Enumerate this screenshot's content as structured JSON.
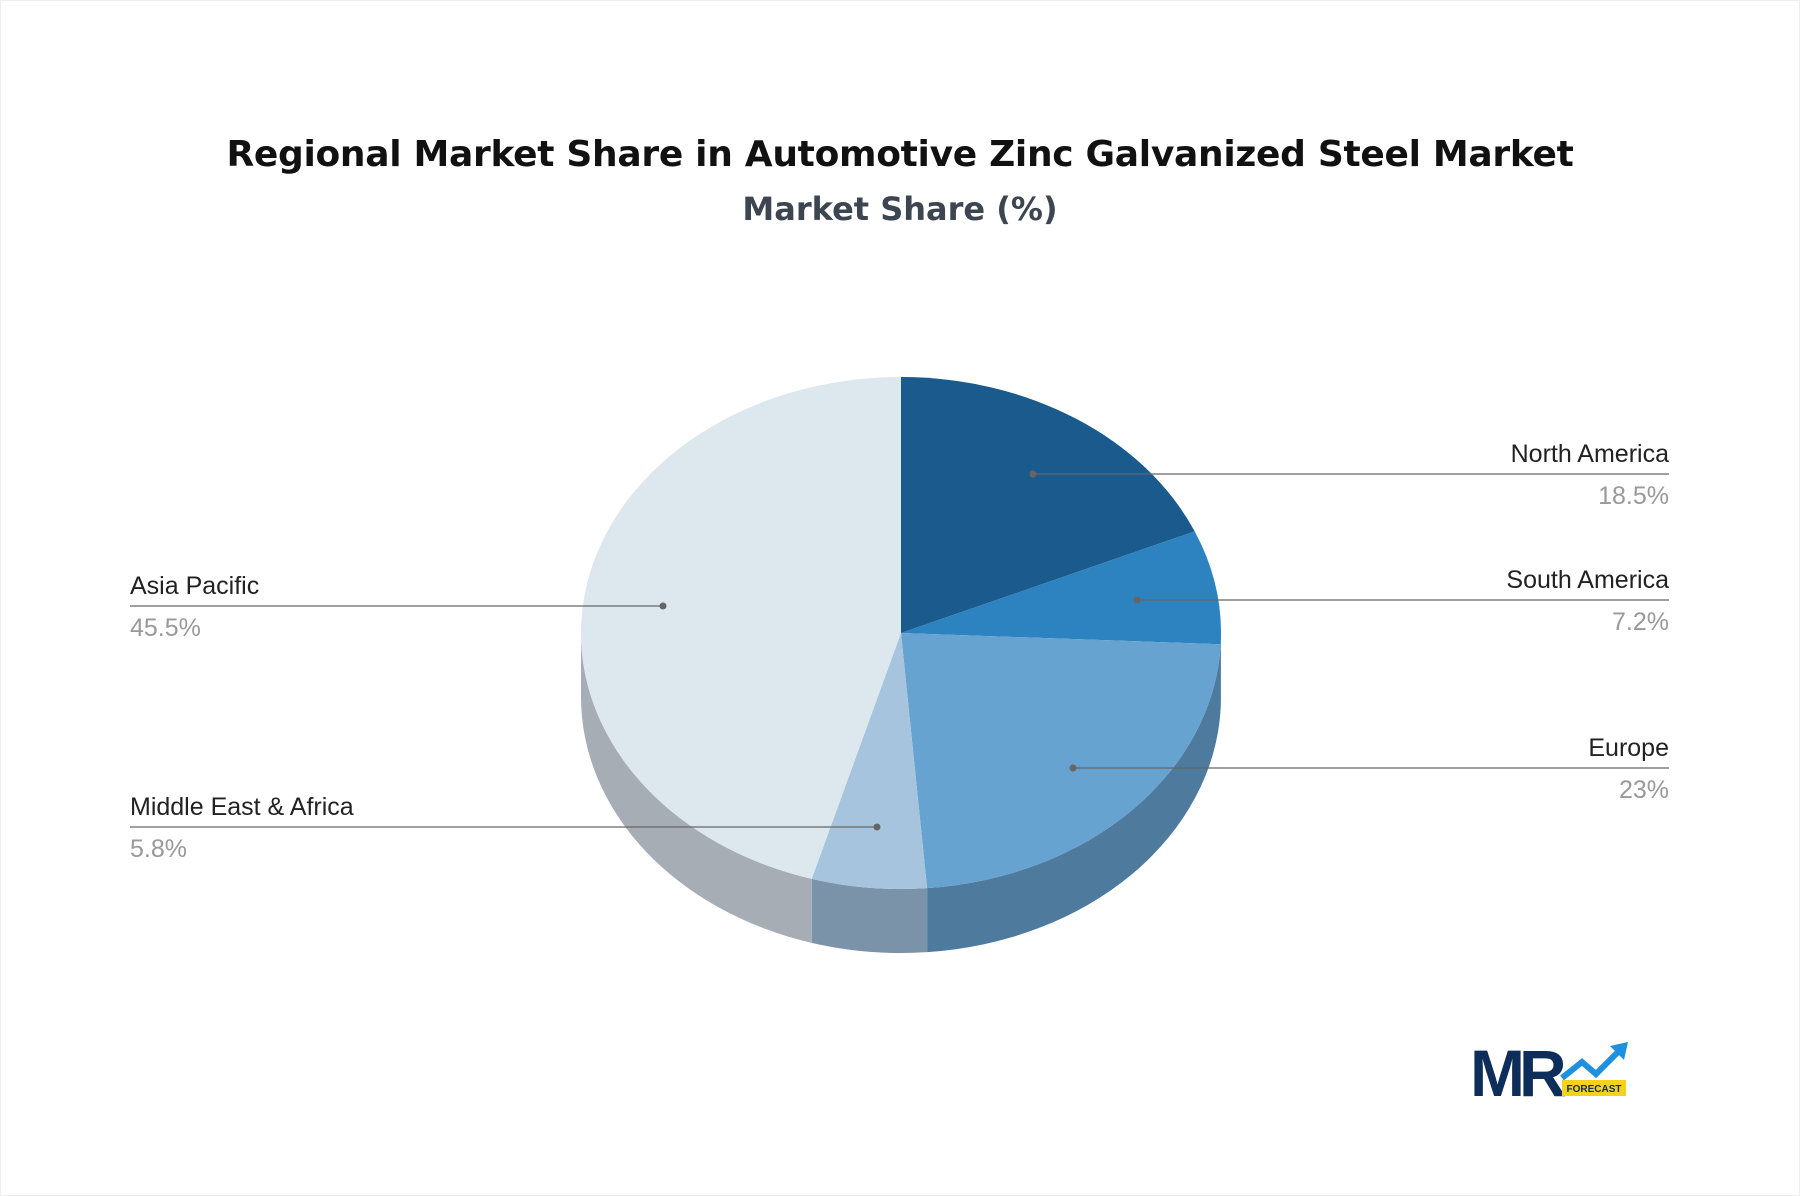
{
  "chart_data": {
    "type": "pie",
    "title": "Regional Market Share in Automotive Zinc Galvanized Steel Market",
    "subtitle": "Market Share (%)",
    "style": "3d",
    "slices": [
      {
        "label": "North America",
        "value": 18.5,
        "display": "18.5%",
        "color": "#1a5a8c",
        "side_color": "#164a73"
      },
      {
        "label": "South America",
        "value": 7.2,
        "display": "7.2%",
        "color": "#2d82c0",
        "side_color": "#25699c"
      },
      {
        "label": "Europe",
        "value": 23,
        "display": "23%",
        "color": "#66a3d1",
        "side_color": "#4e7a9e"
      },
      {
        "label": "Middle East & Africa",
        "value": 5.8,
        "display": "5.8%",
        "color": "#a6c4dd",
        "side_color": "#7b93a8"
      },
      {
        "label": "Asia Pacific",
        "value": 45.5,
        "display": "45.5%",
        "color": "#dde7ee",
        "side_color": "#a7adb4"
      }
    ]
  },
  "logo": {
    "text": "MR",
    "badge": "FORECAST",
    "colors": {
      "mark": "#0d2d5a",
      "arrow": "#1e90e0",
      "badge": "#f5d21e"
    }
  }
}
